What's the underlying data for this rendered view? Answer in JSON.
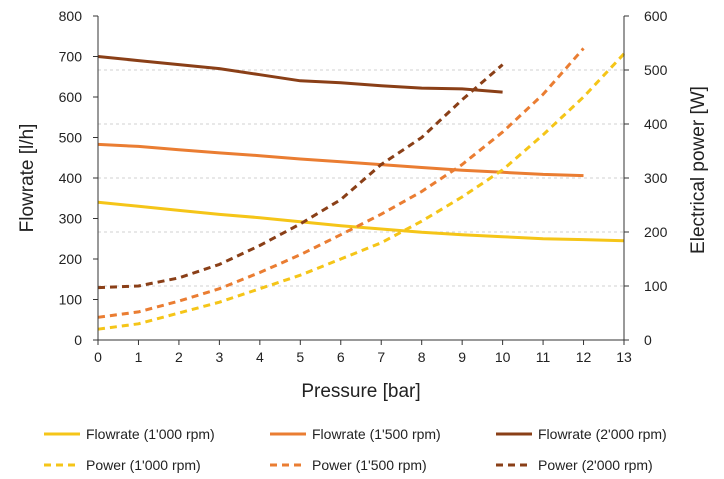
{
  "chart_data": {
    "type": "line",
    "xlabel": "Pressure [bar]",
    "ylabel_left": "Flowrate [l/h]",
    "ylabel_right": "Electrical power [W]",
    "xlim": [
      0,
      13
    ],
    "ylim_left": [
      0,
      800
    ],
    "ylim_right": [
      0,
      600
    ],
    "x_ticks": [
      "0",
      "1",
      "2",
      "3",
      "4",
      "5",
      "6",
      "7",
      "8",
      "9",
      "10",
      "11",
      "12",
      "13"
    ],
    "y_left_ticks": [
      "0",
      "100",
      "200",
      "300",
      "400",
      "500",
      "600",
      "700",
      "800"
    ],
    "y_right_ticks": [
      "0",
      "100",
      "200",
      "300",
      "400",
      "500",
      "600"
    ],
    "grid": "right-axis horizontal dashed",
    "legend_position": "bottom",
    "series": [
      {
        "name": "Flowrate (1'000 rpm)",
        "axis": "left",
        "style": "solid",
        "color": "#F5C518",
        "x": [
          0,
          1,
          2,
          3,
          4,
          5,
          6,
          7,
          8,
          9,
          10,
          11,
          12,
          13
        ],
        "y": [
          340,
          330,
          320,
          310,
          302,
          292,
          282,
          274,
          266,
          260,
          255,
          250,
          248,
          245
        ]
      },
      {
        "name": "Flowrate (1'500 rpm)",
        "axis": "left",
        "style": "solid",
        "color": "#EA7D32",
        "x": [
          0,
          1,
          2,
          3,
          4,
          5,
          6,
          7,
          8,
          9,
          10,
          11,
          12
        ],
        "y": [
          483,
          478,
          470,
          462,
          455,
          447,
          440,
          433,
          426,
          419,
          414,
          409,
          406
        ]
      },
      {
        "name": "Flowrate (2'000 rpm)",
        "axis": "left",
        "style": "solid",
        "color": "#8A3F17",
        "x": [
          0,
          1,
          2,
          3,
          4,
          5,
          6,
          7,
          8,
          9,
          10
        ],
        "y": [
          700,
          690,
          680,
          670,
          655,
          640,
          635,
          628,
          622,
          620,
          612
        ]
      },
      {
        "name": "Power (1'000 rpm)",
        "axis": "right",
        "style": "dashed",
        "color": "#F5C518",
        "x": [
          0,
          1,
          2,
          3,
          4,
          5,
          6,
          7,
          8,
          9,
          10,
          11,
          12,
          13
        ],
        "y": [
          20,
          30,
          50,
          70,
          95,
          120,
          150,
          180,
          220,
          265,
          315,
          380,
          450,
          530
        ]
      },
      {
        "name": "Power (1'500 rpm)",
        "axis": "right",
        "style": "dashed",
        "color": "#EA7D32",
        "x": [
          0,
          1,
          2,
          3,
          4,
          5,
          6,
          7,
          8,
          9,
          10,
          11,
          12
        ],
        "y": [
          42,
          52,
          72,
          95,
          125,
          158,
          195,
          233,
          275,
          325,
          385,
          455,
          540
        ]
      },
      {
        "name": "Power (2'000 rpm)",
        "axis": "right",
        "style": "dashed",
        "color": "#8A3F17",
        "x": [
          0,
          1,
          2,
          3,
          4,
          5,
          6,
          7,
          8,
          9,
          10
        ],
        "y": [
          97,
          100,
          115,
          140,
          175,
          215,
          260,
          325,
          375,
          445,
          510
        ]
      }
    ]
  }
}
